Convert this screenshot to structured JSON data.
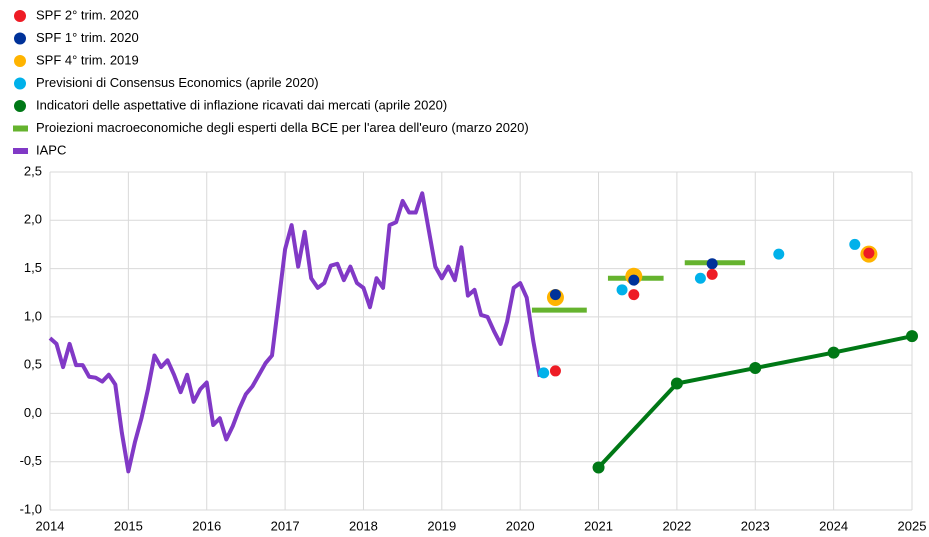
{
  "chart_data": {
    "type": "line",
    "xlim": [
      2014,
      2025
    ],
    "ylim": [
      -1.0,
      2.5
    ],
    "xticks": [
      2014,
      2015,
      2016,
      2017,
      2018,
      2019,
      2020,
      2021,
      2022,
      2023,
      2024,
      2025
    ],
    "yticks": [
      {
        "value": -1.0,
        "label": "-1,0"
      },
      {
        "value": -0.5,
        "label": "-0,5"
      },
      {
        "value": 0.0,
        "label": "0,0"
      },
      {
        "value": 0.5,
        "label": "0,5"
      },
      {
        "value": 1.0,
        "label": "1,0"
      },
      {
        "value": 1.5,
        "label": "1,5"
      },
      {
        "value": 2.0,
        "label": "2,0"
      },
      {
        "value": 2.5,
        "label": "2,5"
      }
    ],
    "grid": true,
    "legend": "top-left",
    "series": [
      {
        "name": "SPF 2° trim. 2020",
        "type": "scatter",
        "color": "#ee1c25",
        "x": [
          2020.45,
          2021.45,
          2022.45,
          2024.45
        ],
        "values": [
          0.44,
          1.23,
          1.44,
          1.66
        ]
      },
      {
        "name": "SPF 1° trim. 2020",
        "type": "scatter",
        "color": "#003299",
        "x": [
          2020.45,
          2021.45,
          2022.45
        ],
        "values": [
          1.23,
          1.38,
          1.55
        ]
      },
      {
        "name": "SPF 4° trim. 2019",
        "type": "scatter",
        "color": "#ffb400",
        "x": [
          2020.45,
          2021.45,
          2024.45
        ],
        "values": [
          1.2,
          1.42,
          1.65
        ]
      },
      {
        "name": "Previsioni di Consensus  Economics (aprile 2020)",
        "type": "scatter",
        "color": "#00b1ea",
        "x": [
          2020.3,
          2021.3,
          2022.3,
          2023.3,
          2024.27
        ],
        "values": [
          0.42,
          1.28,
          1.4,
          1.65,
          1.75
        ]
      },
      {
        "name": "Indicatori delle aspettative  di inflazione ricavati dai mercati (aprile 2020)",
        "type": "line",
        "color": "#007816",
        "markers": true,
        "x": [
          2021,
          2022,
          2023,
          2024,
          2025
        ],
        "values": [
          -0.56,
          0.31,
          0.47,
          0.63,
          0.8
        ]
      },
      {
        "name": "Proiezioni macroeconomiche  degli esperti della BCE per l'area dell'euro  (marzo 2020)",
        "type": "segment",
        "color": "#65b32e",
        "x": [
          [
            2020.15,
            2020.85
          ],
          [
            2021.12,
            2021.83
          ],
          [
            2022.1,
            2022.87
          ]
        ],
        "values": [
          1.07,
          1.4,
          1.56
        ]
      },
      {
        "name": "IAPC",
        "type": "line",
        "color": "#8139c6",
        "x": [
          2014.0,
          2014.083,
          2014.167,
          2014.25,
          2014.333,
          2014.417,
          2014.5,
          2014.583,
          2014.667,
          2014.75,
          2014.833,
          2014.917,
          2015.0,
          2015.083,
          2015.167,
          2015.25,
          2015.333,
          2015.417,
          2015.5,
          2015.583,
          2015.667,
          2015.75,
          2015.833,
          2015.917,
          2016.0,
          2016.083,
          2016.167,
          2016.25,
          2016.333,
          2016.417,
          2016.5,
          2016.583,
          2016.667,
          2016.75,
          2016.833,
          2016.917,
          2017.0,
          2017.083,
          2017.167,
          2017.25,
          2017.333,
          2017.417,
          2017.5,
          2017.583,
          2017.667,
          2017.75,
          2017.833,
          2017.917,
          2018.0,
          2018.083,
          2018.167,
          2018.25,
          2018.333,
          2018.417,
          2018.5,
          2018.583,
          2018.667,
          2018.75,
          2018.833,
          2018.917,
          2019.0,
          2019.083,
          2019.167,
          2019.25,
          2019.333,
          2019.417,
          2019.5,
          2019.583,
          2019.667,
          2019.75,
          2019.833,
          2019.917,
          2020.0,
          2020.083,
          2020.167,
          2020.25
        ],
        "values": [
          0.78,
          0.72,
          0.48,
          0.72,
          0.5,
          0.5,
          0.38,
          0.37,
          0.33,
          0.4,
          0.3,
          -0.2,
          -0.6,
          -0.3,
          -0.05,
          0.25,
          0.6,
          0.48,
          0.55,
          0.4,
          0.22,
          0.4,
          0.12,
          0.25,
          0.32,
          -0.12,
          -0.05,
          -0.27,
          -0.13,
          0.05,
          0.2,
          0.28,
          0.4,
          0.52,
          0.6,
          1.15,
          1.7,
          1.95,
          1.52,
          1.88,
          1.4,
          1.3,
          1.35,
          1.53,
          1.55,
          1.38,
          1.52,
          1.35,
          1.3,
          1.1,
          1.4,
          1.3,
          1.95,
          1.98,
          2.2,
          2.08,
          2.08,
          2.28,
          1.9,
          1.52,
          1.4,
          1.52,
          1.38,
          1.72,
          1.22,
          1.28,
          1.02,
          1.0,
          0.85,
          0.72,
          0.95,
          1.3,
          1.35,
          1.2,
          0.75,
          0.38
        ]
      }
    ]
  }
}
